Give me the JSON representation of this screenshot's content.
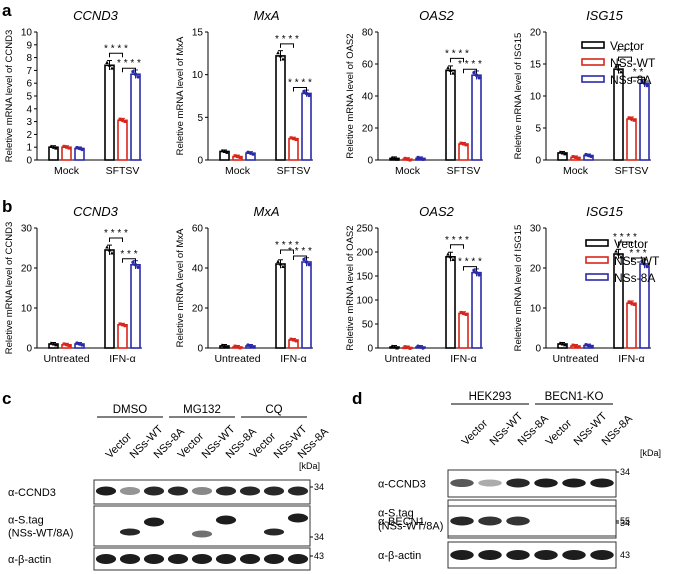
{
  "panel_letters": {
    "a": "a",
    "b": "b",
    "c": "c",
    "d": "d"
  },
  "colors": {
    "vector": "#000000",
    "nss_wt": "#d9261c",
    "nss_8a": "#2a2aa8"
  },
  "sig": {
    "s2": "* *",
    "s3": "* * *",
    "s4": "* * * *"
  },
  "chart_data": [
    {
      "type": "bar",
      "title": "CCND3",
      "ylabel": "Reletive mRNA level of CCND3",
      "categories": [
        "Mock",
        "SFTSV"
      ],
      "ylim": [
        0,
        10
      ],
      "yticks": [
        0,
        1,
        2,
        3,
        4,
        5,
        6,
        7,
        8,
        9,
        10
      ],
      "series": [
        {
          "name": "Vector",
          "values": [
            1.0,
            7.4
          ]
        },
        {
          "name": "NSs-WT",
          "values": [
            1.0,
            3.1
          ]
        },
        {
          "name": "NSs-8A",
          "values": [
            0.9,
            6.7
          ]
        }
      ],
      "brackets": [
        {
          "from": 0,
          "to": 1,
          "label": "* * * *"
        },
        {
          "from": 1,
          "to": 2,
          "label": "* * * *"
        }
      ]
    },
    {
      "type": "bar",
      "title": "MxA",
      "ylabel": "Reletive mRNA level of MxA",
      "categories": [
        "Mock",
        "SFTSV"
      ],
      "ylim": [
        0,
        15
      ],
      "yticks": [
        0,
        5,
        10,
        15
      ],
      "series": [
        {
          "name": "Vector",
          "values": [
            1.0,
            12.2
          ]
        },
        {
          "name": "NSs-WT",
          "values": [
            0.4,
            2.5
          ]
        },
        {
          "name": "NSs-8A",
          "values": [
            0.8,
            7.8
          ]
        }
      ],
      "brackets": [
        {
          "from": 0,
          "to": 1,
          "label": "* * * *"
        },
        {
          "from": 1,
          "to": 2,
          "label": "* * * *"
        }
      ]
    },
    {
      "type": "bar",
      "title": "OAS2",
      "ylabel": "Reletive mRNA level of OAS2",
      "categories": [
        "Mock",
        "SFTSV"
      ],
      "ylim": [
        0,
        80
      ],
      "yticks": [
        0,
        20,
        40,
        60,
        80
      ],
      "series": [
        {
          "name": "Vector",
          "values": [
            1,
            56
          ]
        },
        {
          "name": "NSs-WT",
          "values": [
            0.5,
            10
          ]
        },
        {
          "name": "NSs-8A",
          "values": [
            1,
            53
          ]
        }
      ],
      "brackets": [
        {
          "from": 0,
          "to": 1,
          "label": "* * * *"
        },
        {
          "from": 1,
          "to": 2,
          "label": "* * * *"
        }
      ]
    },
    {
      "type": "bar",
      "title": "ISG15",
      "ylabel": "Reletive mRNA level of ISG15",
      "categories": [
        "Mock",
        "SFTSV"
      ],
      "ylim": [
        0,
        20
      ],
      "yticks": [
        0,
        5,
        10,
        15,
        20
      ],
      "series": [
        {
          "name": "Vector",
          "values": [
            1.1,
            14.2
          ]
        },
        {
          "name": "NSs-WT",
          "values": [
            0.4,
            6.4
          ]
        },
        {
          "name": "NSs-8A",
          "values": [
            0.7,
            12.0
          ]
        }
      ],
      "brackets": [
        {
          "from": 0,
          "to": 1,
          "label": "* * *"
        },
        {
          "from": 1,
          "to": 2,
          "label": "* *"
        }
      ]
    },
    {
      "type": "bar",
      "title": "CCND3",
      "ylabel": "Reletive mRNA level of CCND3",
      "categories": [
        "Untreated",
        "IFN-α"
      ],
      "ylim": [
        0,
        30
      ],
      "yticks": [
        0,
        10,
        20,
        30
      ],
      "series": [
        {
          "name": "Vector",
          "values": [
            1,
            24.5
          ]
        },
        {
          "name": "NSs-WT",
          "values": [
            0.8,
            5.8
          ]
        },
        {
          "name": "NSs-8A",
          "values": [
            1,
            20.8
          ]
        }
      ],
      "brackets": [
        {
          "from": 0,
          "to": 1,
          "label": "* * * *"
        },
        {
          "from": 1,
          "to": 2,
          "label": "* * *"
        }
      ]
    },
    {
      "type": "bar",
      "title": "MxA",
      "ylabel": "Reletive mRNA level of MxA",
      "categories": [
        "Untreated",
        "IFN-α"
      ],
      "ylim": [
        0,
        60
      ],
      "yticks": [
        0,
        20,
        40,
        60
      ],
      "series": [
        {
          "name": "Vector",
          "values": [
            1,
            42
          ]
        },
        {
          "name": "NSs-WT",
          "values": [
            0.5,
            4
          ]
        },
        {
          "name": "NSs-8A",
          "values": [
            1,
            43
          ]
        }
      ],
      "brackets": [
        {
          "from": 0,
          "to": 1,
          "label": "* * * *"
        },
        {
          "from": 1,
          "to": 2,
          "label": "* * * *"
        }
      ]
    },
    {
      "type": "bar",
      "title": "OAS2",
      "ylabel": "Reletive mRNA level of OAS2",
      "categories": [
        "Untreated",
        "IFN-α"
      ],
      "ylim": [
        0,
        250
      ],
      "yticks": [
        0,
        50,
        100,
        150,
        200,
        250
      ],
      "series": [
        {
          "name": "Vector",
          "values": [
            2,
            190
          ]
        },
        {
          "name": "NSs-WT",
          "values": [
            1,
            72
          ]
        },
        {
          "name": "NSs-8A",
          "values": [
            2,
            157
          ]
        }
      ],
      "brackets": [
        {
          "from": 0,
          "to": 1,
          "label": "* * * *"
        },
        {
          "from": 1,
          "to": 2,
          "label": "* * * *"
        }
      ]
    },
    {
      "type": "bar",
      "title": "ISG15",
      "ylabel": "Reletive mRNA level of ISG15",
      "categories": [
        "Untreated",
        "IFN-α"
      ],
      "ylim": [
        0,
        30
      ],
      "yticks": [
        0,
        10,
        20,
        30
      ],
      "series": [
        {
          "name": "Vector",
          "values": [
            1,
            23.5
          ]
        },
        {
          "name": "NSs-WT",
          "values": [
            0.5,
            11.2
          ]
        },
        {
          "name": "NSs-8A",
          "values": [
            0.6,
            21
          ]
        }
      ],
      "brackets": [
        {
          "from": 0,
          "to": 1,
          "label": "* * * *"
        },
        {
          "from": 1,
          "to": 2,
          "label": "* * *"
        }
      ]
    }
  ],
  "legend": [
    "Vector",
    "NSs-WT",
    "NSs-8A"
  ],
  "blot_c": {
    "groups": [
      "DMSO",
      "MG132",
      "CQ"
    ],
    "lanes": [
      "Vector",
      "NSs-WT",
      "NSs-8A",
      "Vector",
      "NSs-WT",
      "NSs-8A",
      "Vector",
      "NSs-WT",
      "NSs-8A"
    ],
    "rows": [
      "α-CCND3",
      "α-S.tag",
      "(NSs-WT/8A)",
      "α-β-actin"
    ],
    "kda": "[kDa]",
    "markers": [
      "34",
      "34",
      "43"
    ]
  },
  "blot_d": {
    "groups": [
      "HEK293",
      "BECN1-KO"
    ],
    "lanes": [
      "Vector",
      "NSs-WT",
      "NSs-8A",
      "Vector",
      "NSs-WT",
      "NSs-8A"
    ],
    "rows": [
      "α-CCND3",
      "α-S.tag",
      "(NSs-WT/8A)",
      "α-BECN1",
      "α-β-actin"
    ],
    "kda": "[kDa]",
    "markers": [
      "34",
      "34",
      "55",
      "43"
    ]
  }
}
